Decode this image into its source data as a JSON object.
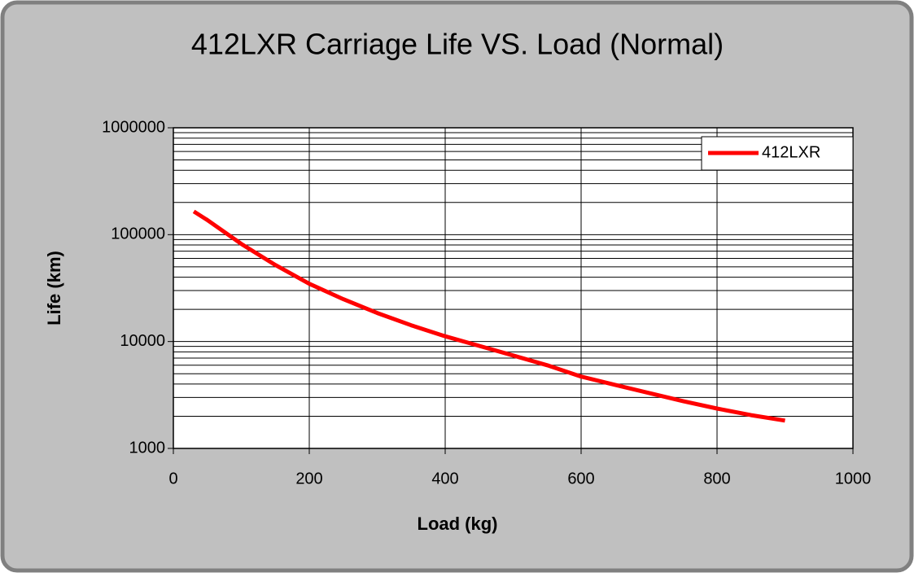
{
  "chart_data": {
    "type": "line",
    "title": "412LXR Carriage Life VS. Load (Normal)",
    "x_label": "Load (kg)",
    "y_label": "Life (km)",
    "x": [
      30,
      50,
      100,
      150,
      200,
      250,
      300,
      350,
      400,
      450,
      500,
      550,
      600,
      650,
      700,
      750,
      800,
      850,
      900
    ],
    "series": [
      {
        "name": "412LXR",
        "color": "#ff0000",
        "values": [
          165000,
          137000,
          82000,
          52000,
          34700,
          24900,
          18500,
          14200,
          11200,
          9100,
          7400,
          6000,
          4700,
          3930,
          3300,
          2770,
          2360,
          2050,
          1820
        ]
      }
    ],
    "xlim": [
      0,
      1000
    ],
    "xticks": [
      0,
      200,
      400,
      600,
      800,
      1000
    ],
    "ylim": [
      1000,
      1000000
    ],
    "yticks": [
      1000,
      10000,
      100000,
      1000000
    ],
    "log_y": true,
    "grid": true,
    "minor_grid": true,
    "legend": "upper right"
  }
}
